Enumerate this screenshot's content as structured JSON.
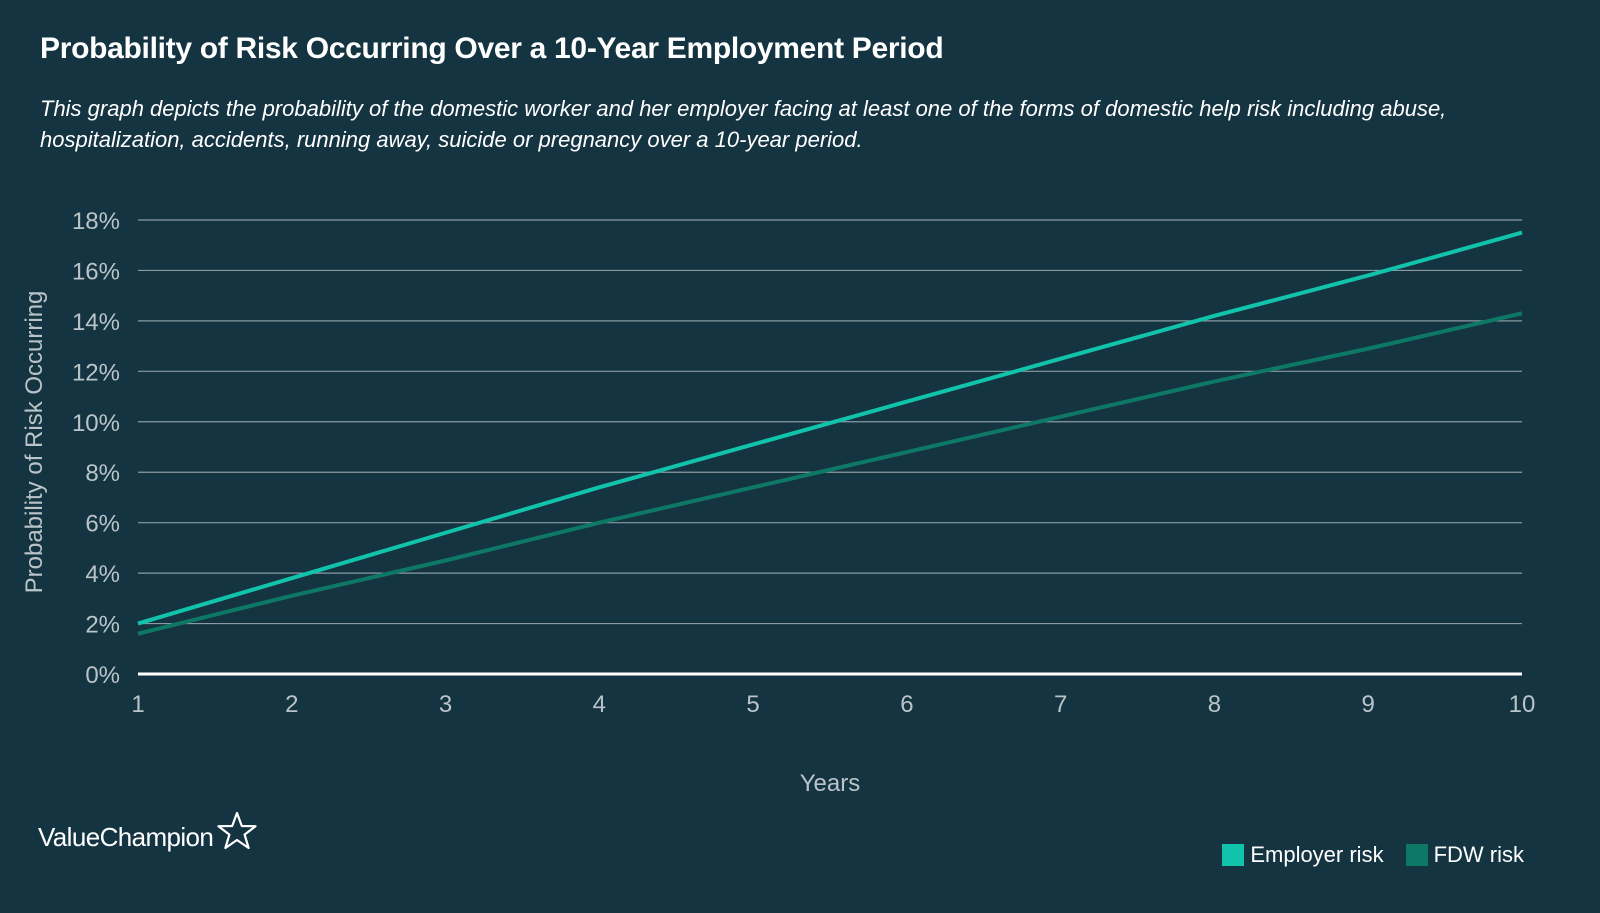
{
  "title": "Probability of Risk Occurring Over a 10-Year Employment Period",
  "subtitle": "This graph depicts the probability of the domestic worker and her employer facing at least one of the forms of domestic help risk including abuse, hospitalization, accidents, running away, suicide or pregnancy over a 10-year period.",
  "logo": {
    "text": "ValueChampion",
    "icon": "star-outline-icon"
  },
  "colors": {
    "background": "#153441",
    "employer": "#12c3ab",
    "fdw": "#0e7866",
    "grid": "#8a9ba3",
    "axis_text": "#b9c4c9"
  },
  "chart_data": {
    "type": "line",
    "title": "Probability of Risk Occurring Over a 10-Year Employment Period",
    "xlabel": "Years",
    "ylabel": "Probability of Risk Occurring",
    "x": [
      1,
      2,
      3,
      4,
      5,
      6,
      7,
      8,
      9,
      10
    ],
    "x_tick_labels": [
      "1",
      "2",
      "3",
      "4",
      "5",
      "6",
      "7",
      "8",
      "9",
      "10"
    ],
    "y_tick_labels": [
      "0%",
      "2%",
      "4%",
      "6%",
      "8%",
      "10%",
      "12%",
      "14%",
      "16%",
      "18%"
    ],
    "y_ticks": [
      0,
      2,
      4,
      6,
      8,
      10,
      12,
      14,
      16,
      18
    ],
    "xlim": [
      1,
      10
    ],
    "ylim": [
      0,
      18
    ],
    "y_unit": "%",
    "grid": true,
    "legend_position": "bottom-right",
    "series": [
      {
        "name": "Employer risk",
        "color": "#12c3ab",
        "values": [
          2.0,
          3.8,
          5.6,
          7.4,
          9.1,
          10.8,
          12.5,
          14.2,
          15.8,
          17.5
        ]
      },
      {
        "name": "FDW risk",
        "color": "#0e7866",
        "values": [
          1.6,
          3.1,
          4.5,
          6.0,
          7.4,
          8.8,
          10.2,
          11.6,
          12.9,
          14.3
        ]
      }
    ]
  }
}
